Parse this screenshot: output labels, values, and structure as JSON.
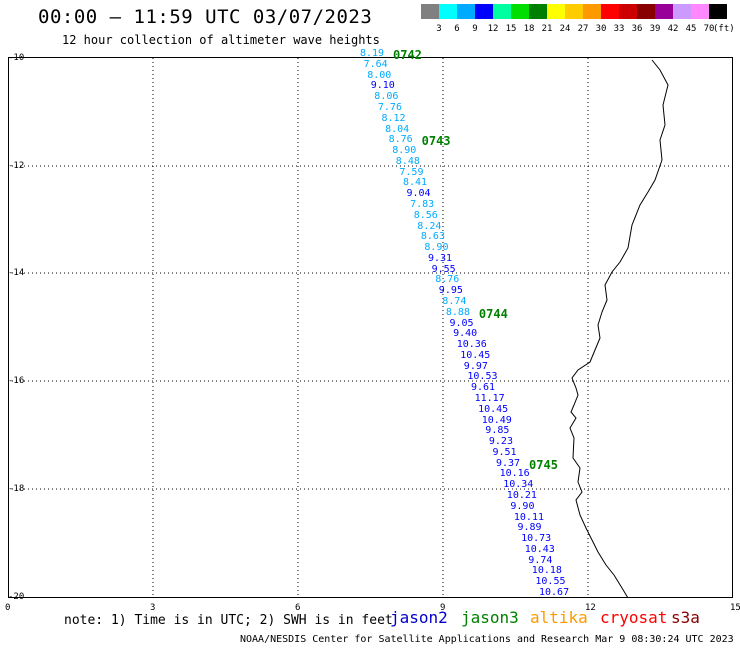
{
  "header": {
    "title": "00:00 – 11:59 UTC 03/07/2023",
    "subtitle": "12 hour collection of altimeter wave heights"
  },
  "legend": {
    "colors": [
      "#808080",
      "#00ffff",
      "#00aaff",
      "#0000ff",
      "#00ffa0",
      "#00dd00",
      "#008000",
      "#ffff00",
      "#ffcc00",
      "#ff9900",
      "#ff0000",
      "#cc0000",
      "#880000",
      "#990099",
      "#cc99ff",
      "#ff88ff",
      "#000000"
    ],
    "labels": [
      "3",
      "6",
      "9",
      "12",
      "15",
      "18",
      "21",
      "24",
      "27",
      "30",
      "33",
      "36",
      "39",
      "42",
      "45",
      "70"
    ],
    "unit": "(ft)"
  },
  "axes": {
    "y_labels": [
      "-10",
      "-12",
      "-14",
      "-16",
      "-18",
      "-20"
    ],
    "x_labels": [
      "0",
      "3",
      "6",
      "9",
      "12",
      "15"
    ]
  },
  "passes": [
    {
      "id": "0742",
      "value_index": 0
    },
    {
      "id": "0743",
      "value_index": 8
    },
    {
      "id": "0744",
      "value_index": 24
    },
    {
      "id": "0745",
      "value_index": 38
    }
  ],
  "track": {
    "values": [
      "8.19",
      "7.64",
      "8.00",
      "9.10",
      "8.06",
      "7.76",
      "8.12",
      "8.04",
      "8.76",
      "8.90",
      "8.48",
      "7.59",
      "8.41",
      "9.04",
      "7.83",
      "8.56",
      "8.24",
      "8.63",
      "8.90",
      "9.31",
      "9.55",
      "8.76",
      "9.95",
      "8.74",
      "8.88",
      "9.05",
      "9.40",
      "10.36",
      "10.45",
      "9.97",
      "10.53",
      "9.61",
      "11.17",
      "10.45",
      "10.49",
      "9.85",
      "9.23",
      "9.51",
      "9.37",
      "10.16",
      "10.34",
      "10.21",
      "9.90",
      "10.11",
      "9.89",
      "10.73",
      "10.43",
      "9.74",
      "10.18",
      "10.55",
      "10.67"
    ],
    "colors": [
      "#00aaff",
      "#00aaff",
      "#00aaff",
      "#0000ff",
      "#00aaff",
      "#00aaff",
      "#00aaff",
      "#00aaff",
      "#00aaff",
      "#00aaff",
      "#00aaff",
      "#00aaff",
      "#00aaff",
      "#0000ff",
      "#00aaff",
      "#00aaff",
      "#00aaff",
      "#00aaff",
      "#00aaff",
      "#0000ff",
      "#0000ff",
      "#00aaff",
      "#0000ff",
      "#00aaff",
      "#00aaff",
      "#0000ff",
      "#0000ff",
      "#0000ff",
      "#0000ff",
      "#0000ff",
      "#0000ff",
      "#0000ff",
      "#0000ff",
      "#0000ff",
      "#0000ff",
      "#0000ff",
      "#0000ff",
      "#0000ff",
      "#0000ff",
      "#0000ff",
      "#0000ff",
      "#0000ff",
      "#0000ff",
      "#0000ff",
      "#0000ff",
      "#0000ff",
      "#0000ff",
      "#0000ff",
      "#0000ff",
      "#0000ff",
      "#0000ff"
    ]
  },
  "footer": {
    "note": "note: 1) Time is in UTC; 2) SWH is in feet",
    "satellites": [
      {
        "name": "jason2",
        "color": "#0000cc"
      },
      {
        "name": "jason3",
        "color": "#008000"
      },
      {
        "name": "altika",
        "color": "#ff9900"
      },
      {
        "name": "cryosat",
        "color": "#ff0000"
      },
      {
        "name": "s3a",
        "color": "#880000"
      }
    ],
    "credit": "NOAA/NESDIS Center for Satellite Applications and Research   Mar  9 08:30:24 UTC 2023"
  }
}
